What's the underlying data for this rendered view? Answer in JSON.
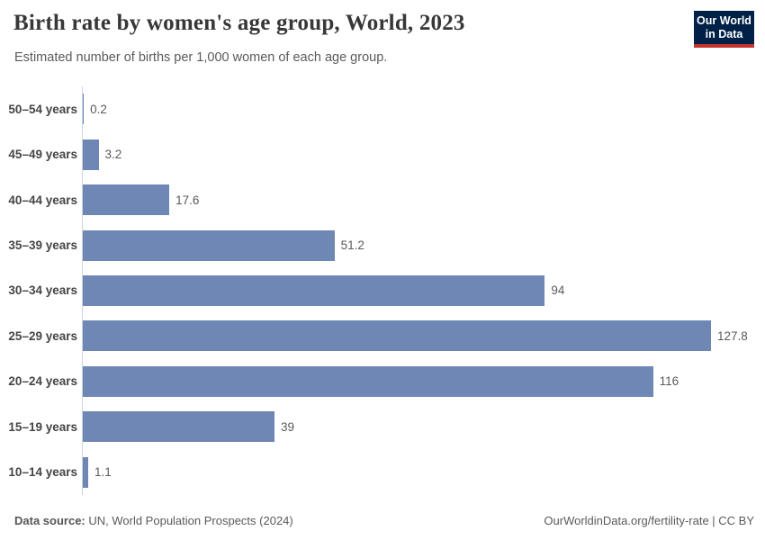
{
  "header": {
    "title": "Birth rate by women's age group, World, 2023",
    "subtitle": "Estimated number of births per 1,000 women of each age group.",
    "logo": {
      "line1": "Our World",
      "line2": "in Data",
      "bg_color": "#002147",
      "accent_color": "#c5332c"
    }
  },
  "chart_data": {
    "type": "bar",
    "orientation": "horizontal",
    "title": "Birth rate by women's age group, World, 2023",
    "subtitle": "Estimated number of births per 1,000 women of each age group.",
    "categories": [
      "50–54 years",
      "45–49 years",
      "40–44 years",
      "35–39 years",
      "30–34 years",
      "25–29 years",
      "20–24 years",
      "15–19 years",
      "10–14 years"
    ],
    "values": [
      0.2,
      3.2,
      17.6,
      51.2,
      94,
      127.8,
      116,
      39,
      1.1
    ],
    "value_labels": [
      "0.2",
      "3.2",
      "17.6",
      "51.2",
      "94",
      "127.8",
      "116",
      "39",
      "1.1"
    ],
    "xlabel": "",
    "ylabel": "",
    "xlim": [
      0,
      130
    ],
    "grid": false,
    "legend": false,
    "bar_color": "#6e87b4",
    "axis_color": "#ccd4e0",
    "label_color": "#454545",
    "value_color": "#5a5a5a"
  },
  "footer": {
    "source_label": "Data source:",
    "source_text": " UN, World Population Prospects (2024)",
    "credit": "OurWorldinData.org/fertility-rate | CC BY"
  }
}
